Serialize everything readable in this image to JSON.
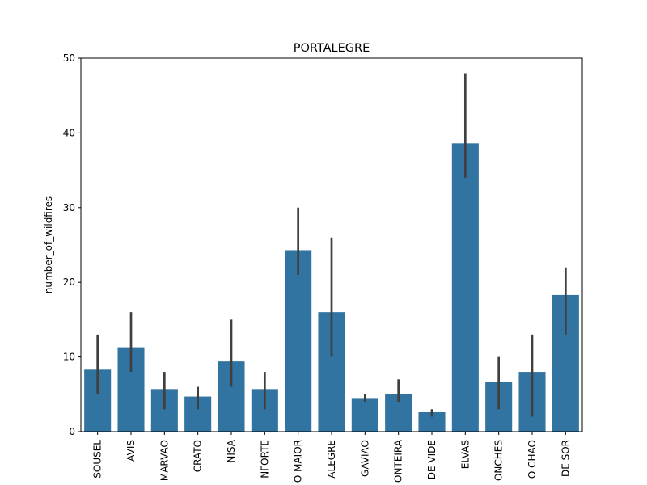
{
  "chart_data": {
    "type": "bar",
    "title": "PORTALEGRE",
    "xlabel": "",
    "ylabel": "number_of_wildfires",
    "ylim": [
      0,
      50
    ],
    "yticks": [
      0,
      10,
      20,
      30,
      40,
      50
    ],
    "categories": [
      "SOUSEL",
      "AVIS",
      "MARVAO",
      "CRATO",
      "NISA",
      "MONFORTE",
      "CAMPO MAIOR",
      "PORTALEGRE",
      "GAVIAO",
      "FRONTEIRA",
      "CASTELO DE VIDE",
      "ELVAS",
      "ARRONCHES",
      "ALTER DO CHAO",
      "PONTE DE SOR"
    ],
    "tick_labels_visible": [
      "SOUSEL",
      "AVIS",
      "MARVAO",
      "CRATO",
      "NISA",
      "NFORTE",
      "O MAIOR",
      "ALEGRE",
      "GAVIAO",
      "ONTEIRA",
      "DE VIDE",
      "ELVAS",
      "ONCHES",
      "O CHAO",
      "DE SOR"
    ],
    "values": [
      8.3,
      11.3,
      5.7,
      4.7,
      9.4,
      5.7,
      24.3,
      16.0,
      4.5,
      5.0,
      2.6,
      38.6,
      6.7,
      8.0,
      18.3
    ],
    "error_low": [
      5,
      8,
      3,
      3,
      6,
      3,
      21,
      10,
      4,
      4,
      2,
      34,
      3,
      2,
      13
    ],
    "error_high": [
      13,
      16,
      8,
      6,
      15,
      8,
      30,
      26,
      5,
      7,
      3,
      48,
      10,
      13,
      22
    ],
    "colors": {
      "bar": "#3274a1",
      "error_bar": "#3f3f3f",
      "axes": "#000000"
    },
    "grid": false,
    "legend": "none"
  }
}
